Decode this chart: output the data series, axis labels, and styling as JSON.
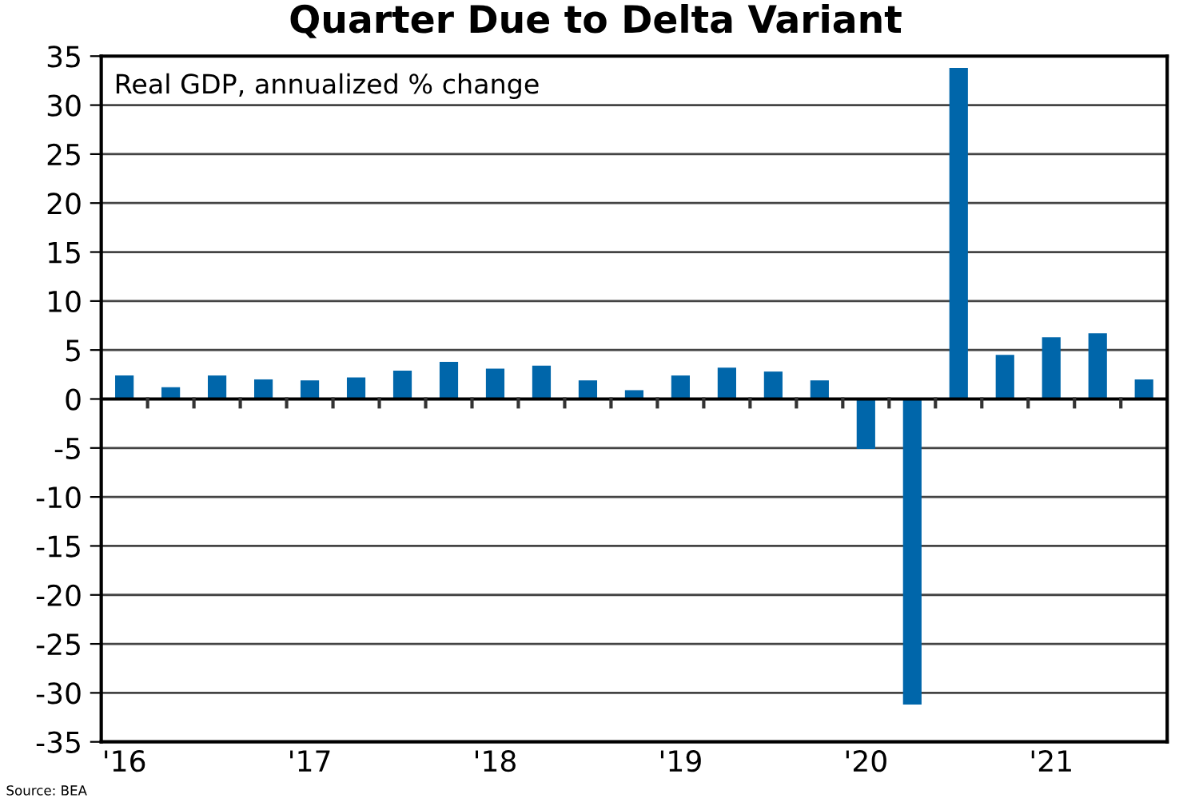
{
  "chart_data": {
    "type": "bar",
    "title": "Quarter Due to Delta Variant",
    "categories": [
      "'16",
      null,
      null,
      null,
      "'17",
      null,
      null,
      null,
      "'18",
      null,
      null,
      null,
      "'19",
      null,
      null,
      null,
      "'20",
      null,
      null,
      null,
      "'21",
      null,
      null
    ],
    "series": [
      {
        "color": "#0066aa",
        "values": [
          2.4,
          1.2,
          2.4,
          2.0,
          1.9,
          2.2,
          2.9,
          3.8,
          3.1,
          3.4,
          1.9,
          0.9,
          2.4,
          3.2,
          2.8,
          1.9,
          -5.1,
          -31.2,
          33.8,
          4.5,
          6.3,
          6.7,
          2.0
        ]
      }
    ],
    "ylim": [
      -35,
      35
    ],
    "yticks": [
      -35,
      -30,
      -25,
      -20,
      -15,
      -10,
      -5,
      0,
      5,
      10,
      15,
      20,
      25,
      30,
      35
    ],
    "grid": "y",
    "annotations": [
      "Real GDP, annualized % change",
      "Source: BEA"
    ]
  }
}
